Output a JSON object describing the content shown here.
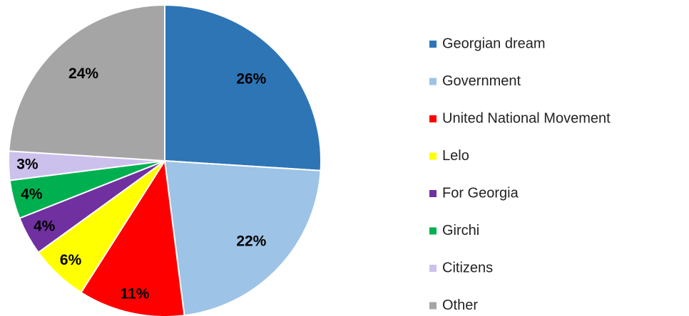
{
  "chart_data": {
    "type": "pie",
    "categories": [
      "Georgian dream",
      "Government",
      "United National Movement",
      "Lelo",
      "For Georgia",
      "Girchi",
      "Citizens",
      "Other"
    ],
    "values": [
      26,
      22,
      11,
      6,
      4,
      4,
      3,
      24
    ],
    "value_labels": [
      "26%",
      "22%",
      "11%",
      "6%",
      "4%",
      "4%",
      "3%",
      "24%"
    ],
    "colors": [
      "#2e75b6",
      "#9dc3e6",
      "#ff0000",
      "#ffff00",
      "#7030a0",
      "#00b050",
      "#ccc0ec",
      "#a5a5a5"
    ],
    "legend": "right"
  }
}
